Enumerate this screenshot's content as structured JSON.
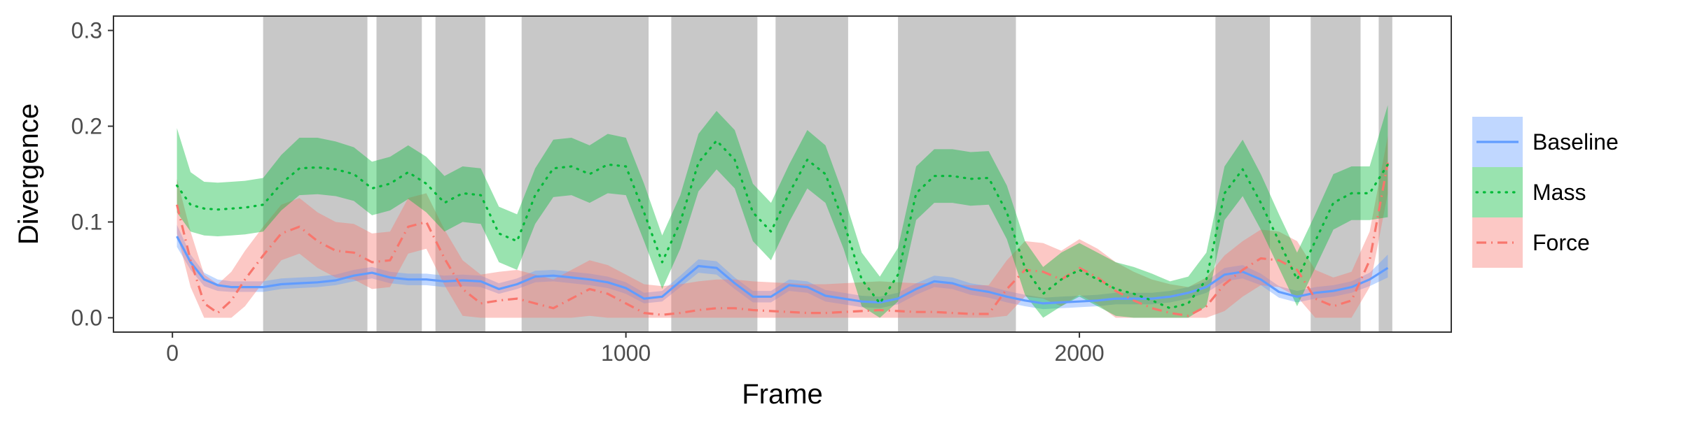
{
  "chart_data": {
    "type": "line",
    "xlabel": "Frame",
    "ylabel": "Divergence",
    "xlim": [
      -130,
      2820
    ],
    "ylim": [
      -0.015,
      0.315
    ],
    "x_ticks": [
      0,
      1000,
      2000
    ],
    "y_ticks": [
      0.0,
      0.1,
      0.2,
      0.3
    ],
    "grid": false,
    "legend_position": "right",
    "shaded_regions": [
      [
        200,
        430
      ],
      [
        450,
        550
      ],
      [
        580,
        690
      ],
      [
        770,
        1050
      ],
      [
        1100,
        1290
      ],
      [
        1330,
        1490
      ],
      [
        1600,
        1860
      ],
      [
        2300,
        2420
      ],
      [
        2510,
        2620
      ],
      [
        2660,
        2690
      ]
    ],
    "x": [
      10,
      40,
      70,
      100,
      130,
      160,
      200,
      240,
      280,
      320,
      360,
      400,
      440,
      480,
      520,
      560,
      600,
      640,
      680,
      720,
      760,
      800,
      840,
      880,
      920,
      960,
      1000,
      1040,
      1080,
      1120,
      1160,
      1200,
      1240,
      1280,
      1320,
      1360,
      1400,
      1440,
      1480,
      1520,
      1560,
      1600,
      1640,
      1680,
      1720,
      1760,
      1800,
      1840,
      1880,
      1920,
      1960,
      2000,
      2040,
      2080,
      2120,
      2160,
      2200,
      2240,
      2280,
      2320,
      2360,
      2400,
      2440,
      2480,
      2520,
      2560,
      2600,
      2640,
      2680
    ],
    "series": [
      {
        "name": "Baseline",
        "color": "#619CFF",
        "dash": "solid",
        "values": [
          0.085,
          0.058,
          0.04,
          0.034,
          0.032,
          0.032,
          0.032,
          0.035,
          0.036,
          0.037,
          0.039,
          0.044,
          0.047,
          0.042,
          0.04,
          0.04,
          0.038,
          0.039,
          0.038,
          0.03,
          0.035,
          0.043,
          0.044,
          0.042,
          0.04,
          0.037,
          0.031,
          0.02,
          0.022,
          0.038,
          0.054,
          0.052,
          0.036,
          0.022,
          0.022,
          0.034,
          0.032,
          0.023,
          0.02,
          0.017,
          0.016,
          0.02,
          0.03,
          0.038,
          0.036,
          0.03,
          0.027,
          0.022,
          0.018,
          0.015,
          0.016,
          0.017,
          0.018,
          0.02,
          0.02,
          0.02,
          0.022,
          0.026,
          0.032,
          0.045,
          0.048,
          0.04,
          0.027,
          0.022,
          0.026,
          0.028,
          0.032,
          0.04,
          0.052
        ],
        "lower": [
          0.074,
          0.05,
          0.033,
          0.028,
          0.027,
          0.027,
          0.027,
          0.03,
          0.031,
          0.032,
          0.034,
          0.038,
          0.041,
          0.036,
          0.034,
          0.034,
          0.032,
          0.033,
          0.032,
          0.025,
          0.03,
          0.037,
          0.038,
          0.036,
          0.034,
          0.031,
          0.025,
          0.015,
          0.017,
          0.032,
          0.047,
          0.045,
          0.03,
          0.016,
          0.016,
          0.028,
          0.026,
          0.017,
          0.014,
          0.011,
          0.01,
          0.014,
          0.024,
          0.032,
          0.03,
          0.024,
          0.021,
          0.016,
          0.012,
          0.009,
          0.01,
          0.011,
          0.012,
          0.014,
          0.014,
          0.014,
          0.016,
          0.02,
          0.026,
          0.038,
          0.041,
          0.034,
          0.021,
          0.016,
          0.02,
          0.022,
          0.026,
          0.033,
          0.042
        ],
        "upper": [
          0.097,
          0.066,
          0.047,
          0.04,
          0.038,
          0.038,
          0.038,
          0.041,
          0.042,
          0.043,
          0.045,
          0.05,
          0.053,
          0.048,
          0.046,
          0.046,
          0.044,
          0.045,
          0.044,
          0.036,
          0.041,
          0.049,
          0.05,
          0.048,
          0.046,
          0.043,
          0.037,
          0.026,
          0.028,
          0.044,
          0.061,
          0.059,
          0.042,
          0.028,
          0.028,
          0.04,
          0.038,
          0.029,
          0.026,
          0.023,
          0.022,
          0.026,
          0.036,
          0.044,
          0.042,
          0.036,
          0.033,
          0.028,
          0.024,
          0.021,
          0.022,
          0.023,
          0.024,
          0.026,
          0.026,
          0.026,
          0.028,
          0.032,
          0.038,
          0.052,
          0.055,
          0.046,
          0.033,
          0.028,
          0.032,
          0.034,
          0.038,
          0.047,
          0.066
        ]
      },
      {
        "name": "Mass",
        "color": "#00BA38",
        "dash": "dotted",
        "values": [
          0.138,
          0.118,
          0.114,
          0.113,
          0.114,
          0.115,
          0.118,
          0.14,
          0.156,
          0.157,
          0.155,
          0.15,
          0.135,
          0.14,
          0.152,
          0.14,
          0.12,
          0.13,
          0.128,
          0.088,
          0.08,
          0.128,
          0.156,
          0.158,
          0.15,
          0.16,
          0.158,
          0.11,
          0.058,
          0.1,
          0.162,
          0.185,
          0.165,
          0.11,
          0.09,
          0.13,
          0.165,
          0.15,
          0.1,
          0.04,
          0.015,
          0.045,
          0.13,
          0.148,
          0.148,
          0.145,
          0.146,
          0.11,
          0.052,
          0.025,
          0.04,
          0.05,
          0.04,
          0.03,
          0.025,
          0.018,
          0.01,
          0.015,
          0.04,
          0.13,
          0.155,
          0.12,
          0.08,
          0.04,
          0.08,
          0.12,
          0.13,
          0.13,
          0.16
        ],
        "lower": [
          0.11,
          0.09,
          0.086,
          0.085,
          0.086,
          0.087,
          0.09,
          0.112,
          0.128,
          0.129,
          0.127,
          0.122,
          0.107,
          0.112,
          0.124,
          0.11,
          0.09,
          0.1,
          0.098,
          0.058,
          0.05,
          0.098,
          0.126,
          0.128,
          0.12,
          0.13,
          0.128,
          0.08,
          0.03,
          0.072,
          0.132,
          0.155,
          0.135,
          0.08,
          0.06,
          0.1,
          0.135,
          0.12,
          0.072,
          0.012,
          0.0,
          0.017,
          0.102,
          0.12,
          0.12,
          0.117,
          0.118,
          0.082,
          0.024,
          0.0,
          0.012,
          0.022,
          0.012,
          0.002,
          0.0,
          0.0,
          0.0,
          0.0,
          0.012,
          0.102,
          0.127,
          0.092,
          0.052,
          0.012,
          0.052,
          0.092,
          0.102,
          0.102,
          0.105
        ],
        "upper": [
          0.198,
          0.152,
          0.142,
          0.141,
          0.142,
          0.143,
          0.146,
          0.17,
          0.188,
          0.188,
          0.184,
          0.178,
          0.163,
          0.168,
          0.18,
          0.168,
          0.148,
          0.158,
          0.156,
          0.116,
          0.108,
          0.156,
          0.186,
          0.188,
          0.18,
          0.192,
          0.188,
          0.14,
          0.086,
          0.128,
          0.192,
          0.216,
          0.196,
          0.14,
          0.12,
          0.16,
          0.196,
          0.18,
          0.128,
          0.068,
          0.043,
          0.073,
          0.158,
          0.176,
          0.176,
          0.173,
          0.174,
          0.138,
          0.08,
          0.053,
          0.068,
          0.078,
          0.068,
          0.058,
          0.053,
          0.046,
          0.038,
          0.043,
          0.068,
          0.158,
          0.186,
          0.15,
          0.108,
          0.068,
          0.108,
          0.15,
          0.158,
          0.158,
          0.222
        ]
      },
      {
        "name": "Force",
        "color": "#F8766D",
        "dash": "dashdot",
        "values": [
          0.118,
          0.06,
          0.015,
          0.005,
          0.018,
          0.04,
          0.065,
          0.088,
          0.095,
          0.08,
          0.07,
          0.068,
          0.058,
          0.06,
          0.095,
          0.1,
          0.062,
          0.03,
          0.015,
          0.018,
          0.02,
          0.015,
          0.01,
          0.02,
          0.03,
          0.025,
          0.015,
          0.005,
          0.003,
          0.005,
          0.008,
          0.01,
          0.01,
          0.008,
          0.007,
          0.006,
          0.005,
          0.005,
          0.006,
          0.007,
          0.008,
          0.007,
          0.006,
          0.006,
          0.005,
          0.004,
          0.004,
          0.03,
          0.05,
          0.048,
          0.04,
          0.052,
          0.042,
          0.028,
          0.018,
          0.01,
          0.005,
          0.002,
          0.012,
          0.035,
          0.05,
          0.062,
          0.06,
          0.05,
          0.02,
          0.012,
          0.018,
          0.06,
          0.162
        ],
        "lower": [
          0.088,
          0.032,
          0.0,
          0.0,
          0.0,
          0.012,
          0.037,
          0.06,
          0.067,
          0.052,
          0.042,
          0.04,
          0.03,
          0.032,
          0.067,
          0.072,
          0.034,
          0.002,
          0.0,
          0.0,
          0.0,
          0.0,
          0.0,
          0.0,
          0.002,
          0.0,
          0.0,
          0.0,
          0.0,
          0.0,
          0.0,
          0.0,
          0.0,
          0.0,
          0.0,
          0.0,
          0.0,
          0.0,
          0.0,
          0.0,
          0.0,
          0.0,
          0.0,
          0.0,
          0.0,
          0.0,
          0.0,
          0.002,
          0.022,
          0.02,
          0.012,
          0.024,
          0.014,
          0.0,
          0.0,
          0.0,
          0.0,
          0.0,
          0.0,
          0.007,
          0.022,
          0.034,
          0.032,
          0.022,
          0.0,
          0.0,
          0.0,
          0.032,
          0.13
        ],
        "upper": [
          0.145,
          0.09,
          0.045,
          0.035,
          0.048,
          0.07,
          0.095,
          0.118,
          0.125,
          0.11,
          0.1,
          0.098,
          0.088,
          0.09,
          0.125,
          0.13,
          0.092,
          0.06,
          0.045,
          0.048,
          0.05,
          0.045,
          0.04,
          0.05,
          0.06,
          0.055,
          0.045,
          0.035,
          0.033,
          0.035,
          0.038,
          0.04,
          0.04,
          0.038,
          0.037,
          0.036,
          0.035,
          0.035,
          0.036,
          0.037,
          0.038,
          0.037,
          0.036,
          0.036,
          0.035,
          0.034,
          0.034,
          0.06,
          0.08,
          0.078,
          0.07,
          0.082,
          0.072,
          0.058,
          0.048,
          0.04,
          0.035,
          0.032,
          0.042,
          0.065,
          0.08,
          0.092,
          0.09,
          0.08,
          0.05,
          0.042,
          0.048,
          0.09,
          0.19
        ]
      }
    ]
  }
}
